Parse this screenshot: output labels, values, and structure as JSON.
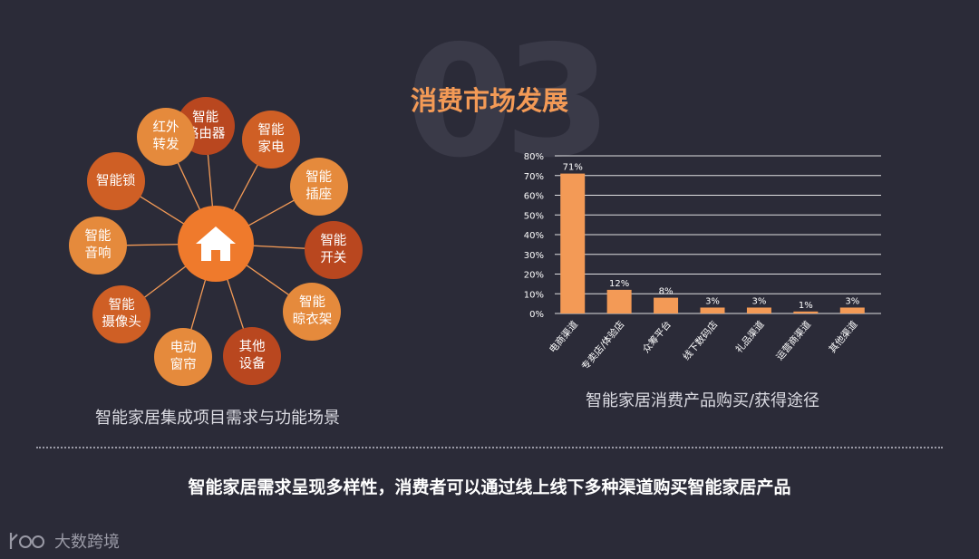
{
  "section_number": "03",
  "title": "消费市场发展",
  "hub_icon": "home-icon",
  "colors": {
    "accent": "#f39a56",
    "hub": "#ef7a2c",
    "bar": "#f39a56",
    "background": "#2b2b38",
    "node_dark": "#b9471f",
    "node_mid": "#cf5f25",
    "node_light": "#e58a3c"
  },
  "nodes": [
    {
      "label": "智能\n路由器",
      "shade": "node_dark"
    },
    {
      "label": "智能\n家电",
      "shade": "node_mid"
    },
    {
      "label": "智能\n插座",
      "shade": "node_light"
    },
    {
      "label": "智能\n开关",
      "shade": "node_dark"
    },
    {
      "label": "智能\n晾衣架",
      "shade": "node_light"
    },
    {
      "label": "其他\n设备",
      "shade": "node_dark"
    },
    {
      "label": "电动\n窗帘",
      "shade": "node_light"
    },
    {
      "label": "智能\n摄像头",
      "shade": "node_mid"
    },
    {
      "label": "智能\n音响",
      "shade": "node_light"
    },
    {
      "label": "智能锁",
      "shade": "node_mid"
    },
    {
      "label": "红外\n转发",
      "shade": "node_light"
    }
  ],
  "left_caption": "智能家居集成项目需求与功能场景",
  "chart_data": {
    "type": "bar",
    "title": "智能家居消费产品购买/获得途径",
    "categories": [
      "电商渠道",
      "专卖店/体验店",
      "众筹平台",
      "线下数码店",
      "礼品渠道",
      "运营商渠道",
      "其他渠道"
    ],
    "values": [
      71,
      12,
      8,
      3,
      3,
      1,
      3
    ],
    "value_labels": [
      "71%",
      "12%",
      "8%",
      "3%",
      "3%",
      "1%",
      "3%"
    ],
    "yticks": [
      "0%",
      "10%",
      "20%",
      "30%",
      "40%",
      "50%",
      "60%",
      "70%",
      "80%"
    ],
    "ylim": [
      0,
      80
    ],
    "grid": true,
    "legend": "none"
  },
  "conclusion": "智能家居需求呈现多样性，消费者可以通过线上线下多种渠道购买智能家居产品",
  "brand": {
    "logo_icon": "k100-logo-icon",
    "name": "大数跨境"
  }
}
